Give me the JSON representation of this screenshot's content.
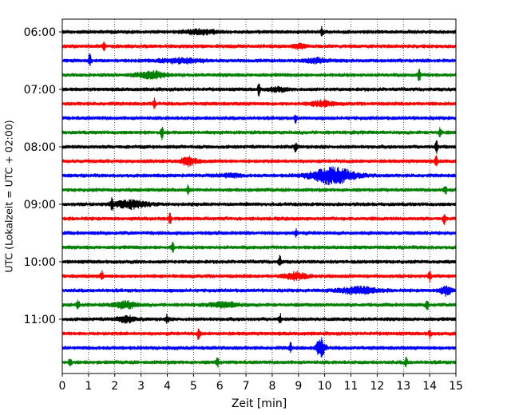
{
  "chart_data": {
    "type": "line",
    "xlabel": "Zeit  [min]",
    "ylabel": "UTC (Lokalzeit = UTC + 02:00)",
    "xlim": [
      0,
      15
    ],
    "x_ticks": [
      "0",
      "1",
      "2",
      "3",
      "4",
      "5",
      "6",
      "7",
      "8",
      "9",
      "10",
      "11",
      "12",
      "13",
      "14",
      "15"
    ],
    "y_ticks": [
      "06:00",
      "07:00",
      "08:00",
      "09:00",
      "10:00",
      "11:00"
    ],
    "y_tick_rows": [
      0,
      4,
      8,
      12,
      16,
      20
    ],
    "grid": "x-dotted",
    "row_minutes": 15,
    "colors": [
      "#000000",
      "#ff0000",
      "#0000ff",
      "#008000"
    ],
    "rows": [
      {
        "start": "06:00",
        "color": "#000000",
        "events": [
          {
            "t": 5.3,
            "a": 0.6,
            "w": 0.6
          },
          {
            "t": 9.9,
            "a": 1.6,
            "w": 0.05
          }
        ]
      },
      {
        "start": "06:15",
        "color": "#ff0000",
        "events": [
          {
            "t": 1.6,
            "a": 1.8,
            "w": 0.05
          },
          {
            "t": 9.0,
            "a": 0.5,
            "w": 0.3
          }
        ]
      },
      {
        "start": "06:30",
        "color": "#0000ff",
        "events": [
          {
            "t": 1.05,
            "a": 2.0,
            "w": 0.05
          },
          {
            "t": 4.5,
            "a": 0.6,
            "w": 0.8
          },
          {
            "t": 9.7,
            "a": 0.6,
            "w": 0.4
          }
        ]
      },
      {
        "start": "06:45",
        "color": "#008000",
        "events": [
          {
            "t": 3.4,
            "a": 1.0,
            "w": 0.5
          },
          {
            "t": 13.6,
            "a": 2.0,
            "w": 0.05
          }
        ]
      },
      {
        "start": "07:00",
        "color": "#000000",
        "events": [
          {
            "t": 7.5,
            "a": 2.0,
            "w": 0.05
          },
          {
            "t": 8.2,
            "a": 0.6,
            "w": 0.3
          }
        ]
      },
      {
        "start": "07:15",
        "color": "#ff0000",
        "events": [
          {
            "t": 3.5,
            "a": 1.6,
            "w": 0.05
          },
          {
            "t": 9.9,
            "a": 0.8,
            "w": 0.4
          }
        ]
      },
      {
        "start": "07:30",
        "color": "#0000ff",
        "events": [
          {
            "t": 8.9,
            "a": 1.4,
            "w": 0.05
          }
        ]
      },
      {
        "start": "07:45",
        "color": "#008000",
        "events": [
          {
            "t": 3.8,
            "a": 1.8,
            "w": 0.05
          },
          {
            "t": 14.4,
            "a": 1.6,
            "w": 0.05
          }
        ]
      },
      {
        "start": "08:00",
        "color": "#000000",
        "events": [
          {
            "t": 8.9,
            "a": 1.6,
            "w": 0.05
          },
          {
            "t": 14.25,
            "a": 2.2,
            "w": 0.05
          }
        ]
      },
      {
        "start": "08:15",
        "color": "#ff0000",
        "events": [
          {
            "t": 4.8,
            "a": 1.2,
            "w": 0.3
          },
          {
            "t": 14.25,
            "a": 1.6,
            "w": 0.05
          }
        ]
      },
      {
        "start": "08:30",
        "color": "#0000ff",
        "events": [
          {
            "t": 10.3,
            "a": 2.4,
            "w": 0.8
          },
          {
            "t": 6.4,
            "a": 0.5,
            "w": 0.4
          }
        ]
      },
      {
        "start": "08:45",
        "color": "#008000",
        "events": [
          {
            "t": 4.8,
            "a": 1.4,
            "w": 0.05
          },
          {
            "t": 14.6,
            "a": 1.5,
            "w": 0.05
          }
        ]
      },
      {
        "start": "09:00",
        "color": "#000000",
        "events": [
          {
            "t": 1.9,
            "a": 1.8,
            "w": 0.05
          },
          {
            "t": 2.6,
            "a": 1.2,
            "w": 0.6
          }
        ]
      },
      {
        "start": "09:15",
        "color": "#ff0000",
        "events": [
          {
            "t": 4.1,
            "a": 1.8,
            "w": 0.05
          },
          {
            "t": 14.55,
            "a": 1.6,
            "w": 0.05
          }
        ]
      },
      {
        "start": "09:30",
        "color": "#0000ff",
        "events": [
          {
            "t": 8.9,
            "a": 1.0,
            "w": 0.05
          }
        ]
      },
      {
        "start": "09:45",
        "color": "#008000",
        "events": [
          {
            "t": 4.2,
            "a": 1.8,
            "w": 0.05
          }
        ]
      },
      {
        "start": "10:00",
        "color": "#000000",
        "events": [
          {
            "t": 8.3,
            "a": 2.0,
            "w": 0.05
          }
        ]
      },
      {
        "start": "10:15",
        "color": "#ff0000",
        "events": [
          {
            "t": 1.5,
            "a": 1.6,
            "w": 0.05
          },
          {
            "t": 8.9,
            "a": 1.0,
            "w": 0.4
          },
          {
            "t": 14.0,
            "a": 1.5,
            "w": 0.05
          }
        ]
      },
      {
        "start": "10:30",
        "color": "#0000ff",
        "events": [
          {
            "t": 11.3,
            "a": 1.0,
            "w": 0.7
          },
          {
            "t": 14.6,
            "a": 1.5,
            "w": 0.2
          }
        ]
      },
      {
        "start": "10:45",
        "color": "#008000",
        "events": [
          {
            "t": 0.6,
            "a": 1.6,
            "w": 0.05
          },
          {
            "t": 2.4,
            "a": 1.0,
            "w": 0.4
          },
          {
            "t": 6.2,
            "a": 0.7,
            "w": 0.5
          },
          {
            "t": 13.9,
            "a": 1.6,
            "w": 0.05
          }
        ]
      },
      {
        "start": "11:00",
        "color": "#000000",
        "events": [
          {
            "t": 2.4,
            "a": 1.0,
            "w": 0.3
          },
          {
            "t": 4.0,
            "a": 1.4,
            "w": 0.05
          },
          {
            "t": 8.3,
            "a": 1.5,
            "w": 0.05
          }
        ]
      },
      {
        "start": "11:15",
        "color": "#ff0000",
        "events": [
          {
            "t": 5.2,
            "a": 2.0,
            "w": 0.05
          },
          {
            "t": 14.0,
            "a": 1.2,
            "w": 0.05
          }
        ]
      },
      {
        "start": "11:30",
        "color": "#0000ff",
        "events": [
          {
            "t": 9.85,
            "a": 3.2,
            "w": 0.15
          },
          {
            "t": 8.7,
            "a": 1.4,
            "w": 0.05
          }
        ]
      },
      {
        "start": "11:45",
        "color": "#008000",
        "events": [
          {
            "t": 0.3,
            "a": 1.5,
            "w": 0.05
          },
          {
            "t": 5.9,
            "a": 1.6,
            "w": 0.05
          },
          {
            "t": 13.1,
            "a": 1.5,
            "w": 0.05
          }
        ]
      }
    ]
  }
}
